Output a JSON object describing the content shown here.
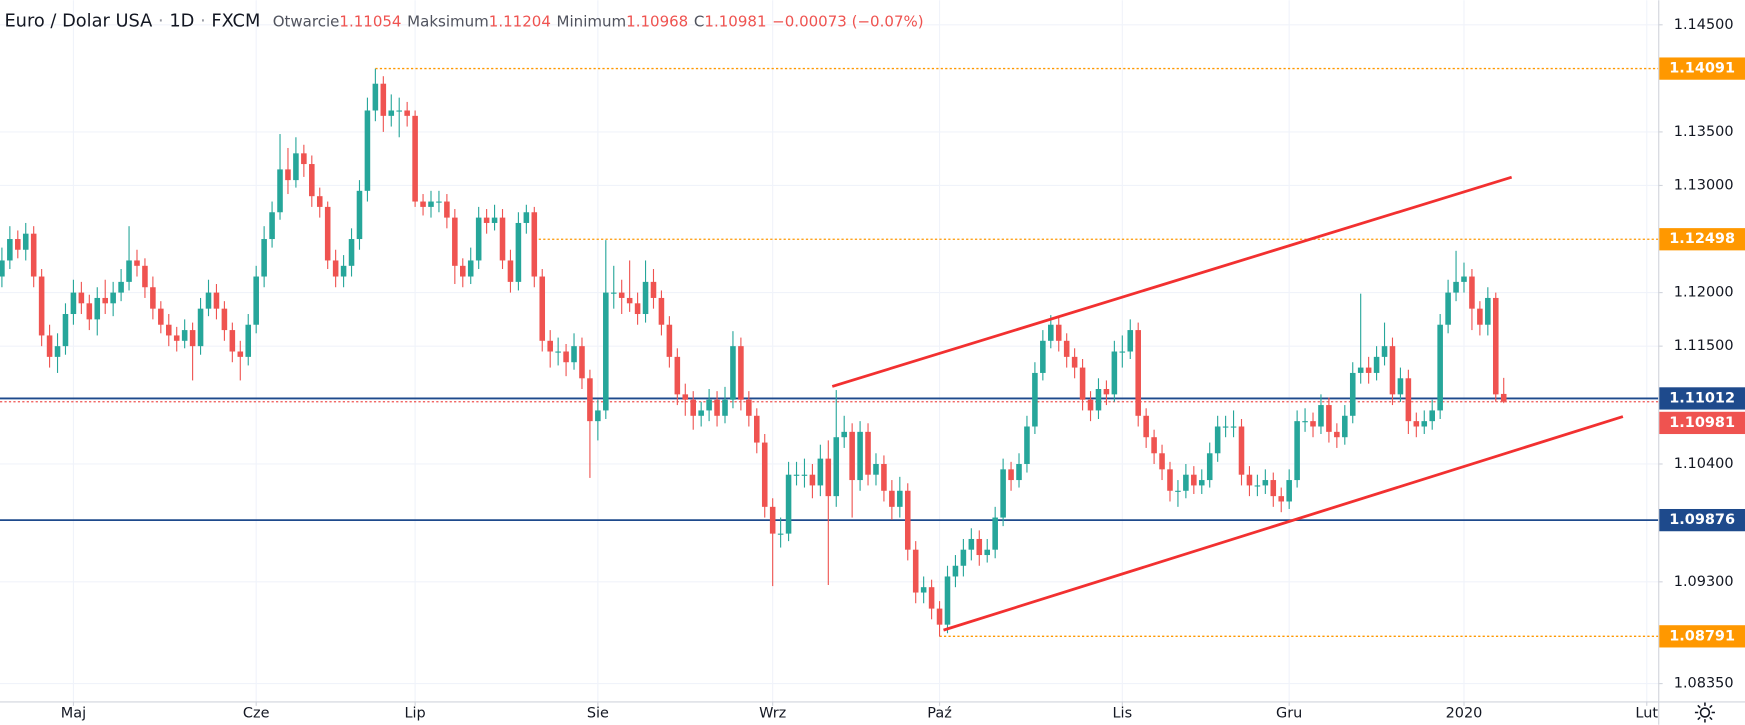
{
  "chart_data": {
    "type": "candlestick",
    "title": "Euro / Dolar USA",
    "separator": "·",
    "interval": "1D",
    "source": "FXCM",
    "ohlc_labels": {
      "open": "Otwarcie",
      "high": "Maksimum",
      "low": "Minimum",
      "close": "C"
    },
    "ohlc_values": {
      "open": "1.11054",
      "high": "1.11204",
      "low": "1.10968",
      "close": "1.10981"
    },
    "change": "−0.00073 (−0.07%)",
    "up_color": "#26a69a",
    "down_color": "#ef5350",
    "grid": true,
    "xlim": [
      -0.24,
      208.44
    ],
    "ylim": [
      1.08184,
      1.14729
    ],
    "xticks": [
      {
        "value": 9,
        "label": "Maj"
      },
      {
        "value": 32,
        "label": "Cze"
      },
      {
        "value": 52,
        "label": "Lip"
      },
      {
        "value": 75,
        "label": "Sie"
      },
      {
        "value": 97,
        "label": "Wrz"
      },
      {
        "value": 118,
        "label": "Paź"
      },
      {
        "value": 141,
        "label": "Lis"
      },
      {
        "value": 162,
        "label": "Gru"
      },
      {
        "value": 184,
        "label": "2020"
      },
      {
        "value": 207,
        "label": "Lut"
      }
    ],
    "yticks": [
      {
        "value": 1.145,
        "label": "1.14500"
      },
      {
        "value": 1.135,
        "label": "1.13500"
      },
      {
        "value": 1.13,
        "label": "1.13000"
      },
      {
        "value": 1.12,
        "label": "1.12000"
      },
      {
        "value": 1.115,
        "label": "1.11500"
      },
      {
        "value": 1.104,
        "label": "1.10400"
      },
      {
        "value": 1.093,
        "label": "1.09300"
      },
      {
        "value": 1.0835,
        "label": "1.08350"
      }
    ],
    "levels": [
      {
        "value": 1.14091,
        "color": "#ff9800",
        "style": "dotted",
        "from": 47
      },
      {
        "value": 1.12498,
        "color": "#ff9800",
        "style": "dotted",
        "from": 67
      },
      {
        "value": 1.11012,
        "color": "#1e4a8c",
        "style": "solid",
        "from": -0.24
      },
      {
        "value": 1.10981,
        "color": "#ef5350",
        "style": "dotted",
        "from": -0.24
      },
      {
        "value": 1.09876,
        "color": "#1e4a8c",
        "style": "solid",
        "from": -0.24
      },
      {
        "value": 1.08791,
        "color": "#ff9800",
        "style": "dotted",
        "from": 118
      }
    ],
    "trendlines": [
      {
        "color": "#f23030",
        "x": [
          104.5,
          190.0
        ],
        "y": [
          1.11124,
          1.13077
        ]
      },
      {
        "color": "#f23030",
        "x": [
          118.5,
          204.0
        ],
        "y": [
          1.08849,
          1.10843
        ]
      }
    ],
    "candles": [
      [
        1.1215,
        1.1242,
        1.1205,
        1.123
      ],
      [
        1.123,
        1.1262,
        1.1222,
        1.125
      ],
      [
        1.125,
        1.1258,
        1.1232,
        1.124
      ],
      [
        1.124,
        1.1265,
        1.123,
        1.1255
      ],
      [
        1.1255,
        1.1262,
        1.1205,
        1.1215
      ],
      [
        1.1215,
        1.1222,
        1.115,
        1.116
      ],
      [
        1.116,
        1.117,
        1.113,
        1.114
      ],
      [
        1.114,
        1.1162,
        1.1125,
        1.115
      ],
      [
        1.115,
        1.119,
        1.1142,
        1.118
      ],
      [
        1.118,
        1.1212,
        1.117,
        1.12
      ],
      [
        1.12,
        1.121,
        1.118,
        1.119
      ],
      [
        1.119,
        1.1198,
        1.1165,
        1.1175
      ],
      [
        1.1175,
        1.1205,
        1.116,
        1.1195
      ],
      [
        1.1195,
        1.1212,
        1.118,
        1.119
      ],
      [
        1.119,
        1.121,
        1.1178,
        1.12
      ],
      [
        1.12,
        1.1222,
        1.1192,
        1.121
      ],
      [
        1.121,
        1.1262,
        1.1202,
        1.123
      ],
      [
        1.123,
        1.124,
        1.1215,
        1.1225
      ],
      [
        1.1225,
        1.1232,
        1.1195,
        1.1205
      ],
      [
        1.1205,
        1.1215,
        1.1175,
        1.1185
      ],
      [
        1.1185,
        1.1192,
        1.1162,
        1.117
      ],
      [
        1.117,
        1.118,
        1.115,
        1.116
      ],
      [
        1.116,
        1.1168,
        1.1145,
        1.1155
      ],
      [
        1.1155,
        1.1175,
        1.1148,
        1.1165
      ],
      [
        1.1165,
        1.1172,
        1.1118,
        1.115
      ],
      [
        1.115,
        1.1195,
        1.1142,
        1.1185
      ],
      [
        1.1185,
        1.1212,
        1.1178,
        1.12
      ],
      [
        1.12,
        1.1208,
        1.1175,
        1.1185
      ],
      [
        1.1185,
        1.1192,
        1.1155,
        1.1165
      ],
      [
        1.1165,
        1.1172,
        1.1135,
        1.1145
      ],
      [
        1.1145,
        1.1155,
        1.1118,
        1.114
      ],
      [
        1.114,
        1.118,
        1.1132,
        1.117
      ],
      [
        1.117,
        1.1225,
        1.1162,
        1.1215
      ],
      [
        1.1215,
        1.1262,
        1.1205,
        1.125
      ],
      [
        1.125,
        1.1285,
        1.1242,
        1.1275
      ],
      [
        1.1275,
        1.1348,
        1.1268,
        1.1315
      ],
      [
        1.1315,
        1.1335,
        1.1292,
        1.1305
      ],
      [
        1.1305,
        1.1345,
        1.1298,
        1.133
      ],
      [
        1.133,
        1.1338,
        1.1308,
        1.132
      ],
      [
        1.132,
        1.1328,
        1.128,
        1.129
      ],
      [
        1.129,
        1.1298,
        1.127,
        1.128
      ],
      [
        1.128,
        1.1285,
        1.1222,
        1.123
      ],
      [
        1.123,
        1.124,
        1.1205,
        1.1215
      ],
      [
        1.1215,
        1.1235,
        1.1205,
        1.1225
      ],
      [
        1.1225,
        1.126,
        1.1215,
        1.125
      ],
      [
        1.125,
        1.1305,
        1.124,
        1.1295
      ],
      [
        1.1295,
        1.1382,
        1.1285,
        1.137
      ],
      [
        1.137,
        1.1409,
        1.136,
        1.1395
      ],
      [
        1.1395,
        1.1402,
        1.135,
        1.1365
      ],
      [
        1.1365,
        1.1385,
        1.1355,
        1.137
      ],
      [
        1.137,
        1.1382,
        1.1345,
        1.137
      ],
      [
        1.137,
        1.1378,
        1.1355,
        1.1365
      ],
      [
        1.1365,
        1.137,
        1.128,
        1.1285
      ],
      [
        1.1285,
        1.1292,
        1.1272,
        1.128
      ],
      [
        1.128,
        1.1295,
        1.127,
        1.1285
      ],
      [
        1.1285,
        1.1295,
        1.1275,
        1.1285
      ],
      [
        1.1285,
        1.1292,
        1.126,
        1.127
      ],
      [
        1.127,
        1.1278,
        1.1208,
        1.1225
      ],
      [
        1.1225,
        1.1232,
        1.1205,
        1.1215
      ],
      [
        1.1215,
        1.1242,
        1.1208,
        1.123
      ],
      [
        1.123,
        1.128,
        1.1222,
        1.127
      ],
      [
        1.127,
        1.1278,
        1.1255,
        1.1265
      ],
      [
        1.1265,
        1.1282,
        1.1258,
        1.127
      ],
      [
        1.127,
        1.1278,
        1.1222,
        1.123
      ],
      [
        1.123,
        1.124,
        1.12,
        1.121
      ],
      [
        1.121,
        1.1275,
        1.1202,
        1.1265
      ],
      [
        1.1265,
        1.1282,
        1.1255,
        1.1275
      ],
      [
        1.1275,
        1.128,
        1.1205,
        1.1215
      ],
      [
        1.1215,
        1.1222,
        1.1145,
        1.1155
      ],
      [
        1.1155,
        1.1165,
        1.113,
        1.1145
      ],
      [
        1.1145,
        1.1158,
        1.1132,
        1.1145
      ],
      [
        1.1145,
        1.1152,
        1.1122,
        1.1135
      ],
      [
        1.1135,
        1.1162,
        1.1128,
        1.115
      ],
      [
        1.115,
        1.1158,
        1.111,
        1.112
      ],
      [
        1.112,
        1.1128,
        1.1027,
        1.108
      ],
      [
        1.108,
        1.11,
        1.1062,
        1.109
      ],
      [
        1.109,
        1.1249,
        1.1082,
        1.12
      ],
      [
        1.12,
        1.1225,
        1.1185,
        1.12
      ],
      [
        1.12,
        1.1212,
        1.118,
        1.1195
      ],
      [
        1.1195,
        1.123,
        1.1182,
        1.119
      ],
      [
        1.119,
        1.12,
        1.117,
        1.118
      ],
      [
        1.118,
        1.123,
        1.1172,
        1.121
      ],
      [
        1.121,
        1.1222,
        1.1185,
        1.1195
      ],
      [
        1.1195,
        1.1202,
        1.116,
        1.117
      ],
      [
        1.117,
        1.1178,
        1.113,
        1.114
      ],
      [
        1.114,
        1.1148,
        1.1095,
        1.1105
      ],
      [
        1.1105,
        1.1115,
        1.1085,
        1.11
      ],
      [
        1.11,
        1.1108,
        1.1072,
        1.1085
      ],
      [
        1.1085,
        1.1098,
        1.1075,
        1.109
      ],
      [
        1.109,
        1.111,
        1.108,
        1.11
      ],
      [
        1.11,
        1.1108,
        1.1075,
        1.1085
      ],
      [
        1.1085,
        1.1112,
        1.1078,
        1.11
      ],
      [
        1.11,
        1.1164,
        1.1092,
        1.115
      ],
      [
        1.115,
        1.1158,
        1.109,
        1.11
      ],
      [
        1.11,
        1.1108,
        1.1075,
        1.1085
      ],
      [
        1.1085,
        1.1092,
        1.105,
        1.106
      ],
      [
        1.106,
        1.1068,
        1.099,
        1.1
      ],
      [
        1.1,
        1.1008,
        1.0926,
        1.0975
      ],
      [
        1.0975,
        1.099,
        1.0962,
        1.0975
      ],
      [
        1.0975,
        1.1042,
        1.0968,
        1.103
      ],
      [
        1.103,
        1.1042,
        1.102,
        1.103
      ],
      [
        1.103,
        1.1045,
        1.1018,
        1.103
      ],
      [
        1.103,
        1.104,
        1.1008,
        1.102
      ],
      [
        1.102,
        1.1058,
        1.101,
        1.1045
      ],
      [
        1.1045,
        1.1062,
        1.0927,
        1.101
      ],
      [
        1.101,
        1.1109,
        1.1,
        1.1065
      ],
      [
        1.1065,
        1.1085,
        1.1055,
        1.107
      ],
      [
        1.107,
        1.1078,
        1.099,
        1.1025
      ],
      [
        1.1025,
        1.108,
        1.1015,
        1.107
      ],
      [
        1.107,
        1.1078,
        1.102,
        1.103
      ],
      [
        1.103,
        1.105,
        1.102,
        1.104
      ],
      [
        1.104,
        1.1048,
        1.1005,
        1.1015
      ],
      [
        1.1015,
        1.1025,
        1.0988,
        1.1
      ],
      [
        1.1,
        1.1028,
        1.099,
        1.1015
      ],
      [
        1.1015,
        1.1022,
        1.095,
        1.096
      ],
      [
        1.096,
        1.0968,
        1.091,
        1.092
      ],
      [
        1.092,
        1.0935,
        1.091,
        1.0925
      ],
      [
        1.0925,
        1.0932,
        1.0895,
        1.0905
      ],
      [
        1.0905,
        1.0912,
        1.0879,
        1.089
      ],
      [
        1.089,
        1.0945,
        1.0882,
        1.0935
      ],
      [
        1.0935,
        1.0955,
        1.0925,
        1.0945
      ],
      [
        1.0945,
        1.097,
        1.0935,
        1.096
      ],
      [
        1.096,
        1.098,
        1.095,
        1.097
      ],
      [
        1.097,
        1.0978,
        1.0945,
        1.0955
      ],
      [
        1.0955,
        1.097,
        1.0948,
        1.096
      ],
      [
        1.096,
        1.1,
        1.0952,
        1.099
      ],
      [
        1.099,
        1.1045,
        1.0982,
        1.1035
      ],
      [
        1.1035,
        1.1042,
        1.1015,
        1.1025
      ],
      [
        1.1025,
        1.105,
        1.1018,
        1.104
      ],
      [
        1.104,
        1.1085,
        1.1032,
        1.1075
      ],
      [
        1.1075,
        1.1135,
        1.1068,
        1.1125
      ],
      [
        1.1125,
        1.1165,
        1.1118,
        1.1155
      ],
      [
        1.1155,
        1.1179,
        1.1148,
        1.117
      ],
      [
        1.117,
        1.1178,
        1.1145,
        1.1155
      ],
      [
        1.1155,
        1.1162,
        1.113,
        1.114
      ],
      [
        1.114,
        1.1148,
        1.112,
        1.113
      ],
      [
        1.113,
        1.1138,
        1.109,
        1.11
      ],
      [
        1.11,
        1.1108,
        1.108,
        1.109
      ],
      [
        1.109,
        1.112,
        1.1082,
        1.111
      ],
      [
        1.111,
        1.1118,
        1.1095,
        1.1105
      ],
      [
        1.1105,
        1.1155,
        1.1098,
        1.1145
      ],
      [
        1.1145,
        1.116,
        1.113,
        1.1145
      ],
      [
        1.1145,
        1.1175,
        1.1138,
        1.1165
      ],
      [
        1.1165,
        1.1172,
        1.1075,
        1.1085
      ],
      [
        1.1085,
        1.1092,
        1.1055,
        1.1065
      ],
      [
        1.1065,
        1.1072,
        1.104,
        1.105
      ],
      [
        1.105,
        1.1058,
        1.1025,
        1.1035
      ],
      [
        1.1035,
        1.1042,
        1.1005,
        1.1015
      ],
      [
        1.1015,
        1.1025,
        1.1,
        1.1015
      ],
      [
        1.1015,
        1.104,
        1.1008,
        1.103
      ],
      [
        1.103,
        1.1038,
        1.1012,
        1.102
      ],
      [
        1.102,
        1.1035,
        1.1012,
        1.1025
      ],
      [
        1.1025,
        1.106,
        1.1018,
        1.105
      ],
      [
        1.105,
        1.1085,
        1.1042,
        1.1075
      ],
      [
        1.1075,
        1.1085,
        1.1065,
        1.1075
      ],
      [
        1.1075,
        1.109,
        1.1065,
        1.1075
      ],
      [
        1.1075,
        1.1082,
        1.102,
        1.103
      ],
      [
        1.103,
        1.1038,
        1.101,
        1.102
      ],
      [
        1.102,
        1.103,
        1.101,
        1.102
      ],
      [
        1.102,
        1.1035,
        1.1012,
        1.1025
      ],
      [
        1.1025,
        1.1032,
        1.1,
        1.101
      ],
      [
        1.101,
        1.1018,
        1.0995,
        1.1005
      ],
      [
        1.1005,
        1.1035,
        1.0998,
        1.1025
      ],
      [
        1.1025,
        1.109,
        1.1018,
        1.108
      ],
      [
        1.108,
        1.1092,
        1.107,
        1.108
      ],
      [
        1.108,
        1.1088,
        1.1065,
        1.1075
      ],
      [
        1.1075,
        1.1105,
        1.1068,
        1.1095
      ],
      [
        1.1095,
        1.1102,
        1.106,
        1.107
      ],
      [
        1.107,
        1.1078,
        1.1055,
        1.1065
      ],
      [
        1.1065,
        1.1095,
        1.1058,
        1.1085
      ],
      [
        1.1085,
        1.1135,
        1.1078,
        1.1125
      ],
      [
        1.1125,
        1.1199,
        1.1115,
        1.113
      ],
      [
        1.113,
        1.114,
        1.1115,
        1.1125
      ],
      [
        1.1125,
        1.115,
        1.1118,
        1.114
      ],
      [
        1.114,
        1.1172,
        1.1132,
        1.115
      ],
      [
        1.115,
        1.1158,
        1.1095,
        1.1105
      ],
      [
        1.1105,
        1.113,
        1.1098,
        1.112
      ],
      [
        1.112,
        1.1128,
        1.1068,
        1.108
      ],
      [
        1.108,
        1.1088,
        1.1065,
        1.1075
      ],
      [
        1.1075,
        1.109,
        1.1068,
        1.108
      ],
      [
        1.108,
        1.11,
        1.1072,
        1.109
      ],
      [
        1.109,
        1.118,
        1.1082,
        1.117
      ],
      [
        1.117,
        1.1212,
        1.1162,
        1.12
      ],
      [
        1.12,
        1.1239,
        1.1192,
        1.121
      ],
      [
        1.121,
        1.1228,
        1.12,
        1.1215
      ],
      [
        1.1215,
        1.1222,
        1.1165,
        1.1185
      ],
      [
        1.1185,
        1.1192,
        1.116,
        1.117
      ],
      [
        1.117,
        1.1205,
        1.116,
        1.1195
      ],
      [
        1.1195,
        1.12,
        1.1098,
        1.1105
      ],
      [
        1.11054,
        1.11204,
        1.10968,
        1.10981
      ]
    ]
  }
}
